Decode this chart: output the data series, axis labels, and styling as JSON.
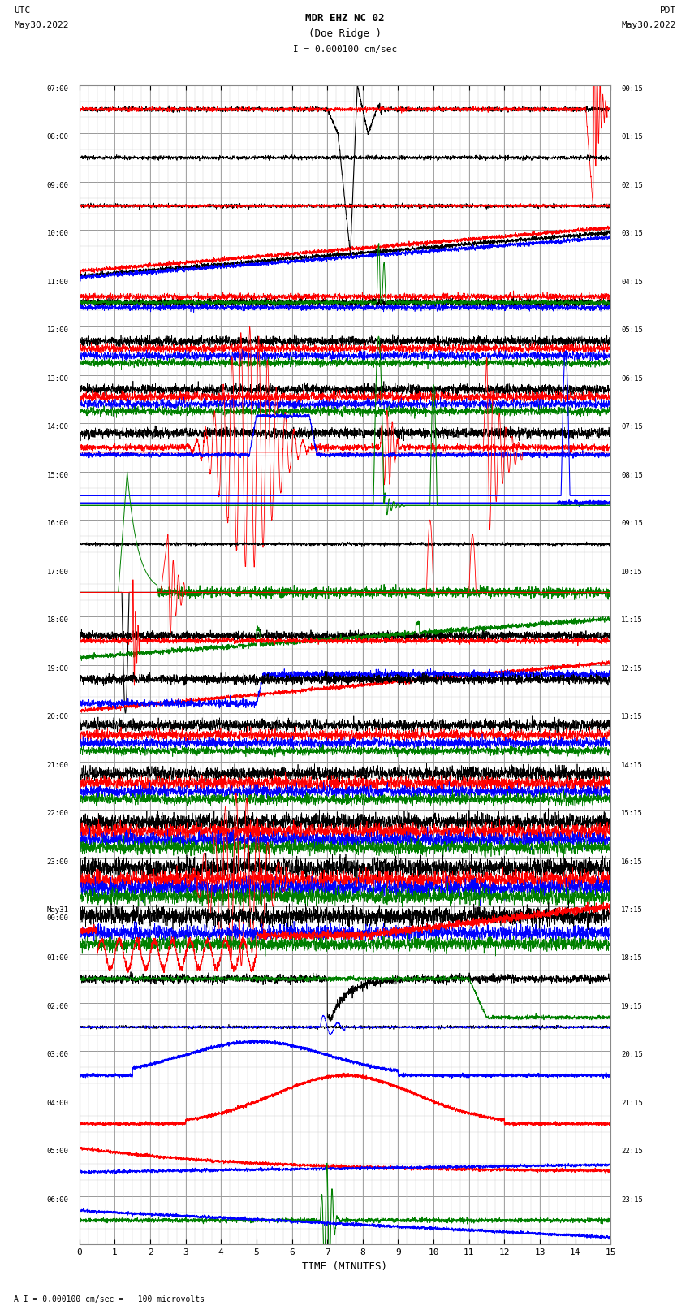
{
  "title_line1": "MDR EHZ NC 02",
  "title_line2": "(Doe Ridge )",
  "scale_text": "I = 0.000100 cm/sec",
  "footer_text": "A I = 0.000100 cm/sec =   100 microvolts",
  "utc_label": "UTC",
  "utc_date": "May30,2022",
  "pdt_label": "PDT",
  "pdt_date": "May30,2022",
  "xlabel": "TIME (MINUTES)",
  "xlim": [
    0,
    15
  ],
  "background_color": "#ffffff",
  "grid_major_color": "#aaaaaa",
  "grid_minor_color": "#dddddd",
  "figure_width": 8.5,
  "figure_height": 16.13
}
